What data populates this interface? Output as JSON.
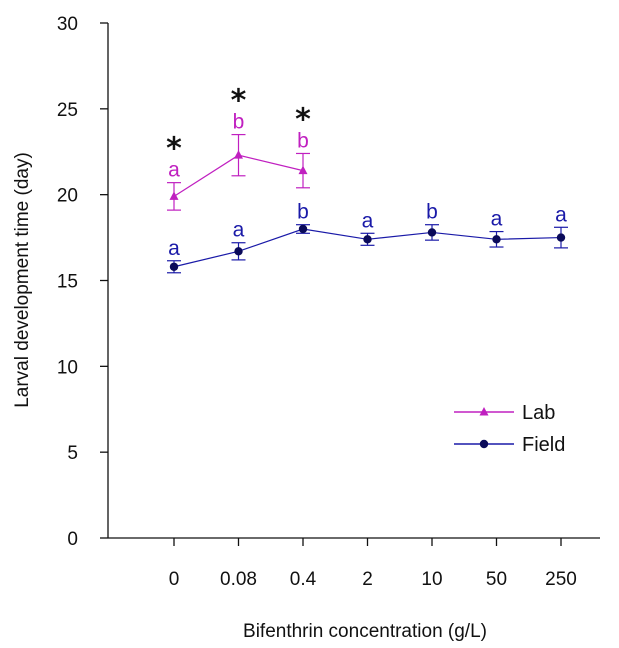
{
  "chart_data": {
    "type": "line",
    "categories": [
      "0",
      "0.08",
      "0.4",
      "2",
      "10",
      "50",
      "250"
    ],
    "xlabel": "Bifenthrin concentration (g/L)",
    "ylabel": "Larval development time (day)",
    "ylim": [
      0,
      30
    ],
    "yticks": [
      "0",
      "5",
      "10",
      "15",
      "20",
      "25",
      "30"
    ],
    "grid": false,
    "legend_placement": "bottom-right",
    "series": [
      {
        "name": "Lab",
        "color": "#c020c0",
        "marker": "triangle",
        "values": [
          19.9,
          22.3,
          21.4,
          null,
          null,
          null,
          null
        ],
        "err": [
          0.8,
          1.2,
          1.0,
          null,
          null,
          null,
          null
        ],
        "letters": [
          "a",
          "b",
          "b",
          null,
          null,
          null,
          null
        ]
      },
      {
        "name": "Field",
        "color": "#1a1aa8",
        "marker_color": "#0a0a5a",
        "marker": "circle",
        "values": [
          15.8,
          16.7,
          18.0,
          17.4,
          17.8,
          17.4,
          17.5
        ],
        "err": [
          0.35,
          0.5,
          0.25,
          0.35,
          0.45,
          0.45,
          0.6
        ],
        "letters": [
          "a",
          "a",
          "b",
          "a",
          "b",
          "a",
          "a"
        ]
      }
    ],
    "significance_marks": [
      "*",
      "*",
      "*",
      null,
      null,
      null,
      null
    ]
  }
}
